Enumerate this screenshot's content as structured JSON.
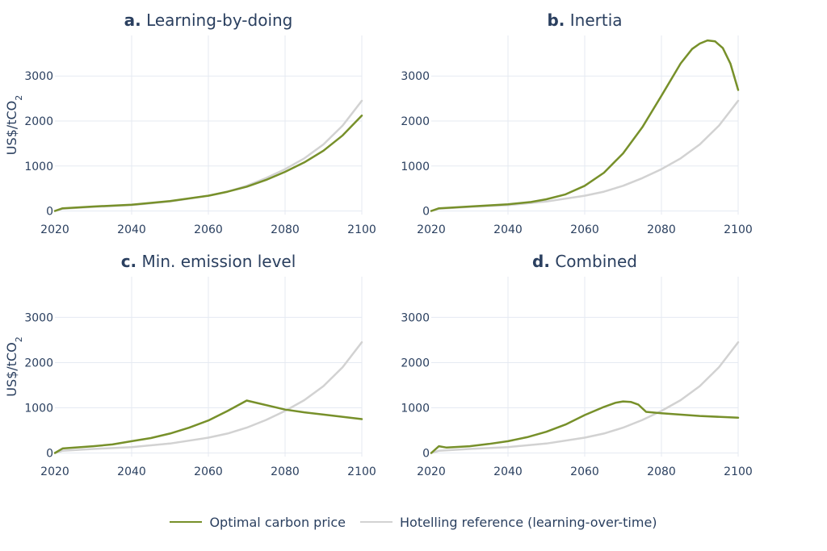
{
  "colors": {
    "optimal": "#77902a",
    "reference": "#d2d2d2",
    "grid": "#e5eaf2",
    "text": "#2a3f5f"
  },
  "legend": {
    "optimal_label": "Optimal carbon price",
    "reference_label": "Hotelling reference (learning-over-time)"
  },
  "chart_data": [
    {
      "type": "line",
      "title_bold": "a.",
      "title": "Learning-by-doing",
      "xlabel": "",
      "ylabel": "US$/tCO2",
      "xlim": [
        2020,
        2100
      ],
      "ylim": [
        -80,
        3900
      ],
      "x_ticks": [
        2020,
        2040,
        2060,
        2080,
        2100
      ],
      "y_ticks": [
        0,
        1000,
        2000,
        3000
      ],
      "series": [
        {
          "name": "Optimal carbon price",
          "x": [
            2020,
            2022,
            2030,
            2040,
            2050,
            2060,
            2065,
            2070,
            2075,
            2080,
            2085,
            2090,
            2095,
            2100
          ],
          "y": [
            0,
            60,
            100,
            140,
            220,
            340,
            430,
            540,
            690,
            870,
            1080,
            1340,
            1680,
            2120
          ]
        },
        {
          "name": "Hotelling reference (learning-over-time)",
          "x": [
            2020,
            2022,
            2030,
            2040,
            2050,
            2060,
            2065,
            2070,
            2075,
            2080,
            2085,
            2090,
            2095,
            2100
          ],
          "y": [
            0,
            50,
            90,
            130,
            210,
            340,
            430,
            560,
            730,
            930,
            1170,
            1480,
            1900,
            2450
          ]
        }
      ]
    },
    {
      "type": "line",
      "title_bold": "b.",
      "title": "Inertia",
      "xlabel": "",
      "ylabel": "",
      "xlim": [
        2020,
        2100
      ],
      "ylim": [
        -80,
        3900
      ],
      "x_ticks": [
        2020,
        2040,
        2060,
        2080,
        2100
      ],
      "y_ticks": [
        0,
        1000,
        2000,
        3000
      ],
      "series": [
        {
          "name": "Optimal carbon price",
          "x": [
            2020,
            2022,
            2030,
            2040,
            2046,
            2050,
            2055,
            2060,
            2065,
            2070,
            2075,
            2080,
            2085,
            2088,
            2090,
            2092,
            2094,
            2096,
            2098,
            2100
          ],
          "y": [
            0,
            60,
            100,
            150,
            200,
            260,
            370,
            560,
            850,
            1280,
            1860,
            2560,
            3280,
            3600,
            3720,
            3790,
            3770,
            3620,
            3270,
            2690
          ]
        },
        {
          "name": "Hotelling reference (learning-over-time)",
          "x": [
            2020,
            2022,
            2030,
            2040,
            2050,
            2060,
            2065,
            2070,
            2075,
            2080,
            2085,
            2090,
            2095,
            2100
          ],
          "y": [
            0,
            50,
            90,
            130,
            210,
            340,
            430,
            560,
            730,
            930,
            1170,
            1480,
            1900,
            2450
          ]
        }
      ]
    },
    {
      "type": "line",
      "title_bold": "c.",
      "title": "Min. emission level",
      "xlabel": "",
      "ylabel": "US$/tCO2",
      "xlim": [
        2020,
        2100
      ],
      "ylim": [
        -80,
        3900
      ],
      "x_ticks": [
        2020,
        2040,
        2060,
        2080,
        2100
      ],
      "y_ticks": [
        0,
        1000,
        2000,
        3000
      ],
      "series": [
        {
          "name": "Optimal carbon price",
          "x": [
            2020,
            2022,
            2030,
            2035,
            2040,
            2045,
            2050,
            2055,
            2060,
            2065,
            2070,
            2080,
            2085,
            2090,
            2100
          ],
          "y": [
            0,
            100,
            150,
            190,
            260,
            330,
            430,
            560,
            720,
            930,
            1160,
            960,
            900,
            850,
            750
          ]
        },
        {
          "name": "Hotelling reference (learning-over-time)",
          "x": [
            2020,
            2022,
            2030,
            2040,
            2050,
            2060,
            2065,
            2070,
            2075,
            2080,
            2085,
            2090,
            2095,
            2100
          ],
          "y": [
            0,
            50,
            90,
            130,
            210,
            340,
            430,
            560,
            730,
            930,
            1170,
            1480,
            1900,
            2450
          ]
        }
      ]
    },
    {
      "type": "line",
      "title_bold": "d.",
      "title": "Combined",
      "xlabel": "",
      "ylabel": "",
      "xlim": [
        2020,
        2100
      ],
      "ylim": [
        -80,
        3900
      ],
      "x_ticks": [
        2020,
        2040,
        2060,
        2080,
        2100
      ],
      "y_ticks": [
        0,
        1000,
        2000,
        3000
      ],
      "series": [
        {
          "name": "Optimal carbon price",
          "x": [
            2020,
            2022,
            2024,
            2030,
            2035,
            2040,
            2045,
            2050,
            2055,
            2060,
            2065,
            2068,
            2070,
            2072,
            2074,
            2076,
            2080,
            2090,
            2100
          ],
          "y": [
            0,
            150,
            120,
            150,
            200,
            260,
            350,
            470,
            630,
            840,
            1020,
            1110,
            1140,
            1130,
            1070,
            910,
            880,
            820,
            780
          ]
        },
        {
          "name": "Hotelling reference (learning-over-time)",
          "x": [
            2020,
            2022,
            2030,
            2040,
            2050,
            2060,
            2065,
            2070,
            2075,
            2080,
            2085,
            2090,
            2095,
            2100
          ],
          "y": [
            0,
            50,
            90,
            130,
            210,
            340,
            430,
            560,
            730,
            930,
            1170,
            1480,
            1900,
            2450
          ]
        }
      ]
    }
  ]
}
